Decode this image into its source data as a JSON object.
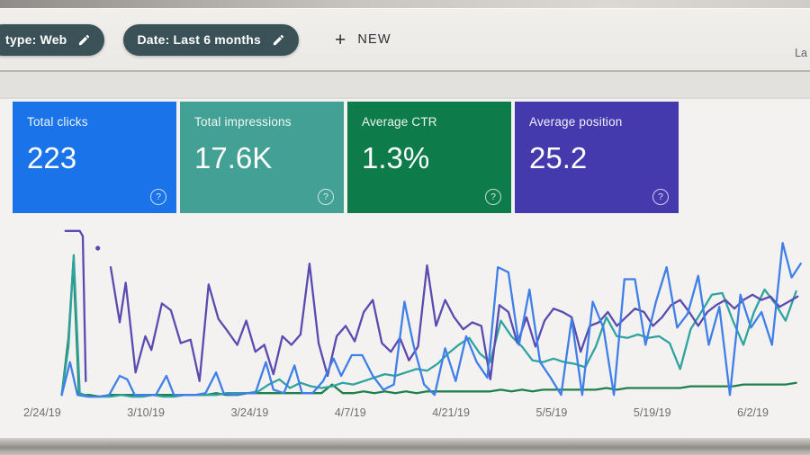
{
  "header": {
    "chips": [
      {
        "label": "type: Web"
      },
      {
        "label": "Date: Last 6 months"
      }
    ],
    "new_button": {
      "plus": "+",
      "label": "NEW"
    },
    "right_fragment": "La"
  },
  "icons": {
    "help": "?"
  },
  "cards": [
    {
      "title": "Total clicks",
      "value": "223",
      "color": "#1a73e8"
    },
    {
      "title": "Total impressions",
      "value": "17.6K",
      "color": "#43a094"
    },
    {
      "title": "Average CTR",
      "value": "1.3%",
      "color": "#0e7c4a"
    },
    {
      "title": "Average position",
      "value": "25.2",
      "color": "#4539ae"
    }
  ],
  "chart_data": {
    "type": "line",
    "title": "",
    "xlabel": "",
    "ylabel": "",
    "grid": false,
    "legend_position": "none",
    "y_unit": "normalized-0-100",
    "x_labels": [
      "2/24/19",
      "3/10/19",
      "3/24/19",
      "4/7/19",
      "4/21/19",
      "5/5/19",
      "5/19/19",
      "6/2/19"
    ],
    "series": [
      {
        "id": "ctr",
        "name": "Average CTR",
        "color": "#20804d",
        "kind": "line",
        "points": [
          [
            1.5,
            2
          ],
          [
            2.4,
            35
          ],
          [
            3.05,
            79
          ],
          [
            3.8,
            2
          ],
          [
            5.2,
            2
          ],
          [
            6.6,
            1
          ],
          [
            8,
            2
          ],
          [
            9.4,
            2
          ],
          [
            10.8,
            2
          ],
          [
            12.2,
            2
          ],
          [
            13.6,
            2
          ],
          [
            15,
            2
          ],
          [
            16.4,
            2
          ],
          [
            17.8,
            2
          ],
          [
            19.2,
            2
          ],
          [
            20.6,
            2
          ],
          [
            22,
            3
          ],
          [
            23.4,
            2
          ],
          [
            24.8,
            2
          ],
          [
            26.2,
            3
          ],
          [
            27.6,
            3
          ],
          [
            29,
            3
          ],
          [
            30.4,
            3
          ],
          [
            31.8,
            3
          ],
          [
            33.2,
            3
          ],
          [
            34.6,
            3
          ],
          [
            36,
            3
          ],
          [
            37.4,
            8
          ],
          [
            38.8,
            3
          ],
          [
            40.2,
            3
          ],
          [
            41.6,
            4
          ],
          [
            43,
            3
          ],
          [
            44.4,
            4
          ],
          [
            45.8,
            3
          ],
          [
            47.2,
            4
          ],
          [
            48.6,
            3
          ],
          [
            50,
            4
          ],
          [
            51.4,
            4
          ],
          [
            52.8,
            4
          ],
          [
            54.2,
            4
          ],
          [
            55.6,
            4
          ],
          [
            57,
            4
          ],
          [
            58.4,
            4
          ],
          [
            59.8,
            5
          ],
          [
            61.2,
            4
          ],
          [
            62.6,
            5
          ],
          [
            64,
            4
          ],
          [
            65.4,
            5
          ],
          [
            66.8,
            5
          ],
          [
            68.2,
            5
          ],
          [
            69.6,
            5
          ],
          [
            71,
            5
          ],
          [
            72.4,
            5
          ],
          [
            73.8,
            6
          ],
          [
            75.2,
            5
          ],
          [
            76.6,
            6
          ],
          [
            78,
            6
          ],
          [
            79.4,
            6
          ],
          [
            80.8,
            6
          ],
          [
            82.2,
            6
          ],
          [
            83.6,
            6
          ],
          [
            85,
            7
          ],
          [
            86.4,
            7
          ],
          [
            87.8,
            7
          ],
          [
            89.2,
            7
          ],
          [
            90.6,
            7
          ],
          [
            92,
            8
          ],
          [
            93.4,
            8
          ],
          [
            94.8,
            8
          ],
          [
            96.2,
            8
          ],
          [
            97.6,
            8
          ],
          [
            99,
            9
          ]
        ]
      },
      {
        "id": "impressions",
        "name": "Total impressions",
        "color": "#2fa3a0",
        "kind": "line",
        "points": [
          [
            1.5,
            2
          ],
          [
            2.4,
            30
          ],
          [
            3.1,
            83
          ],
          [
            3.9,
            3
          ],
          [
            5.2,
            1
          ],
          [
            6.6,
            1
          ],
          [
            8,
            1
          ],
          [
            9.4,
            2
          ],
          [
            10.8,
            1
          ],
          [
            12.2,
            1
          ],
          [
            13.6,
            2
          ],
          [
            15,
            1
          ],
          [
            16.4,
            1
          ],
          [
            17.8,
            2
          ],
          [
            19.2,
            2
          ],
          [
            20.6,
            2
          ],
          [
            22,
            2
          ],
          [
            23.4,
            3
          ],
          [
            24.8,
            3
          ],
          [
            26.2,
            3
          ],
          [
            27.6,
            4
          ],
          [
            29,
            8
          ],
          [
            30.4,
            11
          ],
          [
            31.8,
            6
          ],
          [
            33.2,
            9
          ],
          [
            34.6,
            7
          ],
          [
            36,
            6
          ],
          [
            37.4,
            7
          ],
          [
            38.8,
            9
          ],
          [
            40.2,
            8
          ],
          [
            41.6,
            10
          ],
          [
            43,
            12
          ],
          [
            44.4,
            14
          ],
          [
            45.8,
            13
          ],
          [
            47.2,
            15
          ],
          [
            48.6,
            17
          ],
          [
            50,
            16
          ],
          [
            51.4,
            20
          ],
          [
            52.8,
            26
          ],
          [
            54.2,
            31
          ],
          [
            55.6,
            35
          ],
          [
            57,
            26
          ],
          [
            58.4,
            21
          ],
          [
            59.8,
            45
          ],
          [
            61.2,
            36
          ],
          [
            62.6,
            30
          ],
          [
            64,
            22
          ],
          [
            65.4,
            21
          ],
          [
            66.8,
            23
          ],
          [
            68.2,
            21
          ],
          [
            69.6,
            20
          ],
          [
            71,
            18
          ],
          [
            72.4,
            30
          ],
          [
            73.8,
            47
          ],
          [
            75.2,
            36
          ],
          [
            76.6,
            35
          ],
          [
            78,
            37
          ],
          [
            79.4,
            35
          ],
          [
            80.8,
            36
          ],
          [
            82.2,
            32
          ],
          [
            83.6,
            17
          ],
          [
            85,
            40
          ],
          [
            86.4,
            50
          ],
          [
            87.8,
            60
          ],
          [
            89.2,
            61
          ],
          [
            90.6,
            45
          ],
          [
            92,
            31
          ],
          [
            93.4,
            50
          ],
          [
            94.8,
            63
          ],
          [
            96.2,
            55
          ],
          [
            97.6,
            45
          ],
          [
            99,
            62
          ]
        ]
      },
      {
        "id": "position-start",
        "name": "Average position",
        "color": "#5a4bb0",
        "kind": "line",
        "points": [
          [
            2,
            97
          ],
          [
            3.9,
            97
          ],
          [
            4.3,
            94
          ],
          [
            4.7,
            10
          ]
        ]
      },
      {
        "id": "position-point",
        "name": "Average position",
        "color": "#5a4bb0",
        "kind": "dot",
        "points": [
          [
            6.3,
            87
          ]
        ]
      },
      {
        "id": "position",
        "name": "Average position",
        "color": "#5a4bb0",
        "kind": "line",
        "points": [
          [
            8,
            76
          ],
          [
            9.2,
            44
          ],
          [
            10,
            67
          ],
          [
            11.3,
            15
          ],
          [
            12.6,
            36
          ],
          [
            13.4,
            28
          ],
          [
            14.8,
            55
          ],
          [
            16,
            51
          ],
          [
            17.3,
            32
          ],
          [
            18.6,
            34
          ],
          [
            19.8,
            10
          ],
          [
            21,
            66
          ],
          [
            22.3,
            46
          ],
          [
            23.5,
            39
          ],
          [
            24.8,
            31
          ],
          [
            26,
            45
          ],
          [
            27.2,
            27
          ],
          [
            28.4,
            31
          ],
          [
            29.6,
            14
          ],
          [
            30.8,
            36
          ],
          [
            32,
            31
          ],
          [
            33.2,
            37
          ],
          [
            34.4,
            78
          ],
          [
            35.6,
            32
          ],
          [
            36.8,
            13
          ],
          [
            38,
            36
          ],
          [
            39.2,
            42
          ],
          [
            40.4,
            33
          ],
          [
            41.6,
            50
          ],
          [
            42.8,
            57
          ],
          [
            44,
            32
          ],
          [
            45.2,
            27
          ],
          [
            46.4,
            35
          ],
          [
            47.6,
            22
          ],
          [
            48.8,
            30
          ],
          [
            50,
            77
          ],
          [
            51.2,
            42
          ],
          [
            52.4,
            57
          ],
          [
            53.6,
            47
          ],
          [
            54.8,
            40
          ],
          [
            56,
            44
          ],
          [
            57.2,
            42
          ],
          [
            58.4,
            11
          ],
          [
            59.6,
            54
          ],
          [
            60.8,
            50
          ],
          [
            62,
            32
          ],
          [
            63.2,
            47
          ],
          [
            64.4,
            30
          ],
          [
            65.6,
            45
          ],
          [
            66.8,
            52
          ],
          [
            68,
            50
          ],
          [
            69.2,
            47
          ],
          [
            70.4,
            27
          ],
          [
            71.6,
            42
          ],
          [
            72.8,
            44
          ],
          [
            74,
            50
          ],
          [
            75.2,
            42
          ],
          [
            76.4,
            47
          ],
          [
            77.6,
            52
          ],
          [
            78.8,
            50
          ],
          [
            80,
            42
          ],
          [
            81.2,
            47
          ],
          [
            82.4,
            54
          ],
          [
            83.6,
            57
          ],
          [
            84.8,
            50
          ],
          [
            86,
            42
          ],
          [
            87.2,
            50
          ],
          [
            88.4,
            54
          ],
          [
            89.6,
            57
          ],
          [
            90.8,
            52
          ],
          [
            92,
            57
          ],
          [
            93.2,
            60
          ],
          [
            94.4,
            57
          ],
          [
            95.6,
            59
          ],
          [
            96.8,
            53
          ],
          [
            98,
            56
          ],
          [
            99.2,
            59
          ]
        ]
      },
      {
        "id": "clicks",
        "name": "Total clicks",
        "color": "#3f7fe8",
        "kind": "line",
        "points": [
          [
            1.5,
            2
          ],
          [
            2.6,
            21
          ],
          [
            3.6,
            2
          ],
          [
            5,
            1
          ],
          [
            6.4,
            1
          ],
          [
            7.8,
            2
          ],
          [
            9.2,
            13
          ],
          [
            10.2,
            11
          ],
          [
            11.2,
            2
          ],
          [
            12.6,
            2
          ],
          [
            14,
            2
          ],
          [
            15.4,
            13
          ],
          [
            16.4,
            2
          ],
          [
            17.8,
            2
          ],
          [
            19.2,
            2
          ],
          [
            20.6,
            3
          ],
          [
            22,
            15
          ],
          [
            23,
            3
          ],
          [
            24.4,
            2
          ],
          [
            25.8,
            3
          ],
          [
            27.2,
            3
          ],
          [
            28.6,
            21
          ],
          [
            29.6,
            5
          ],
          [
            31,
            3
          ],
          [
            32.4,
            19
          ],
          [
            33.4,
            3
          ],
          [
            34.8,
            3
          ],
          [
            36.2,
            10
          ],
          [
            37.6,
            23
          ],
          [
            38.6,
            13
          ],
          [
            40,
            25
          ],
          [
            41.4,
            25
          ],
          [
            42.8,
            13
          ],
          [
            44.2,
            5
          ],
          [
            45.6,
            8
          ],
          [
            47,
            56
          ],
          [
            48.2,
            31
          ],
          [
            49.6,
            8
          ],
          [
            51,
            2
          ],
          [
            52.4,
            29
          ],
          [
            53.8,
            10
          ],
          [
            55.2,
            36
          ],
          [
            56.6,
            21
          ],
          [
            58,
            12
          ],
          [
            59.4,
            76
          ],
          [
            60.8,
            73
          ],
          [
            62.2,
            31
          ],
          [
            63.6,
            63
          ],
          [
            65,
            21
          ],
          [
            66.4,
            12
          ],
          [
            67.8,
            2
          ],
          [
            69.2,
            46
          ],
          [
            70.6,
            2
          ],
          [
            72,
            56
          ],
          [
            73.4,
            41
          ],
          [
            74.8,
            2
          ],
          [
            76.2,
            69
          ],
          [
            77.6,
            69
          ],
          [
            79,
            31
          ],
          [
            80.4,
            56
          ],
          [
            81.8,
            76
          ],
          [
            83.2,
            41
          ],
          [
            84.6,
            49
          ],
          [
            86,
            71
          ],
          [
            87.4,
            31
          ],
          [
            88.8,
            53
          ],
          [
            90.2,
            2
          ],
          [
            91.6,
            60
          ],
          [
            93,
            41
          ],
          [
            94.4,
            50
          ],
          [
            95.8,
            31
          ],
          [
            97.2,
            90
          ],
          [
            98.4,
            70
          ],
          [
            99.6,
            78
          ]
        ]
      }
    ]
  }
}
